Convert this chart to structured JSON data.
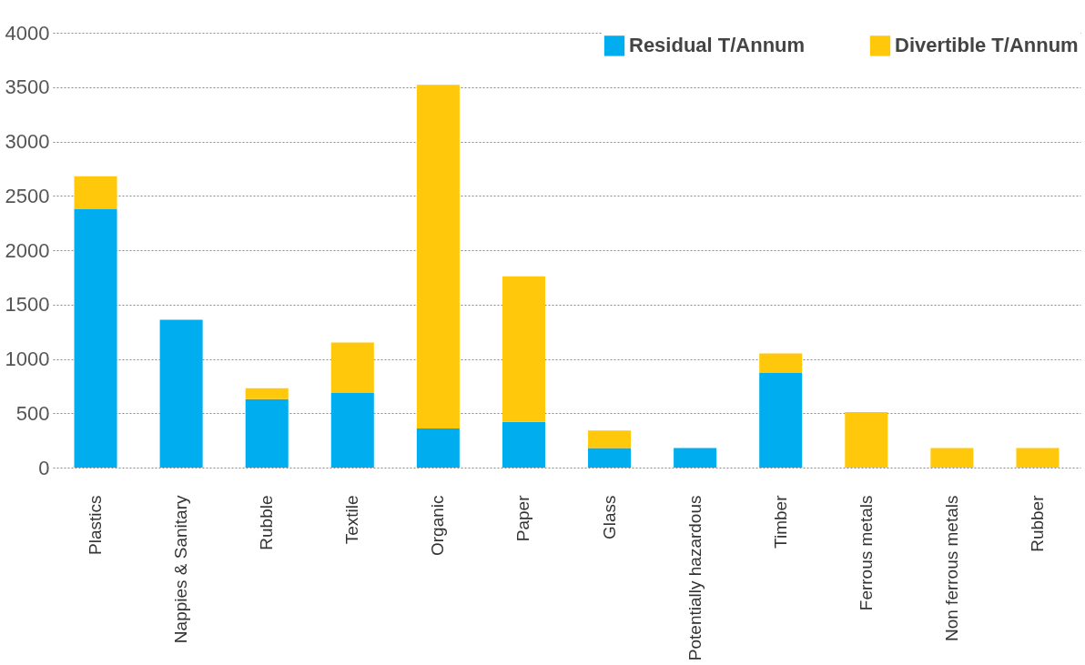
{
  "chart_data": {
    "type": "bar",
    "stacked": true,
    "categories": [
      "Plastics",
      "Nappies & Sanitary",
      "Rubble",
      "Textile",
      "Organic",
      "Paper",
      "Glass",
      "Potentially hazardous",
      "Timber",
      "Ferrous metals",
      "Non ferrous metals",
      "Rubber"
    ],
    "series": [
      {
        "name": "Residual T/Annum",
        "color": "#00aeef",
        "values": [
          2380,
          1360,
          630,
          690,
          360,
          420,
          180,
          180,
          870,
          0,
          0,
          0
        ]
      },
      {
        "name": "Divertible T/Annum",
        "color": "#ffc80a",
        "values": [
          300,
          0,
          100,
          460,
          3160,
          1340,
          160,
          0,
          180,
          510,
          180,
          180
        ]
      }
    ],
    "ylim": [
      0,
      4000
    ],
    "yticks": [
      0,
      500,
      1000,
      1500,
      2000,
      2500,
      3000,
      3500,
      4000
    ],
    "grid": "y",
    "legend": "top right"
  }
}
